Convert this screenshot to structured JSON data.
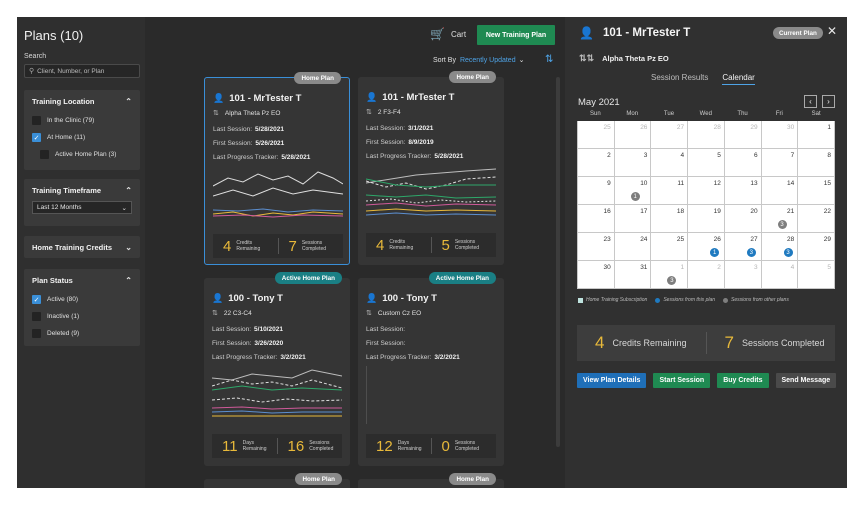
{
  "sidebar": {
    "title": "Plans (10)",
    "search_label": "Search",
    "search_placeholder": "Client, Number, or Plan",
    "location": {
      "title": "Training Location",
      "options": [
        {
          "label": "In the Clinic (79)",
          "checked": false
        },
        {
          "label": "At Home (11)",
          "checked": true
        },
        {
          "label": "Active Home Plan (3)",
          "checked": false
        }
      ]
    },
    "timeframe": {
      "title": "Training Timeframe",
      "value": "Last 12 Months"
    },
    "credits": {
      "title": "Home Training Credits"
    },
    "status": {
      "title": "Plan Status",
      "options": [
        {
          "label": "Active (80)",
          "checked": true
        },
        {
          "label": "Inactive (1)",
          "checked": false
        },
        {
          "label": "Deleted (9)",
          "checked": false
        }
      ]
    }
  },
  "toolbar": {
    "cart_label": "Cart",
    "new_plan_label": "New Training Plan",
    "sort_label": "Sort By",
    "sort_value": "Recently Updated"
  },
  "cards": [
    {
      "badge": "Home Plan",
      "badge_type": "home",
      "name": "101 - MrTester T",
      "protocol": "Alpha Theta Pz EO",
      "last_session_label": "Last Session:",
      "last_session": "5/28/2021",
      "first_session_label": "First Session:",
      "first_session": "5/26/2021",
      "tracker_label": "Last Progress Tracker:",
      "tracker": "5/28/2021",
      "stat1_num": "4",
      "stat1_l1": "Credits",
      "stat1_l2": "Remaining",
      "stat2_num": "7",
      "stat2_l1": "Sessions",
      "stat2_l2": "Completed"
    },
    {
      "badge": "Home Plan",
      "badge_type": "home",
      "name": "101 - MrTester T",
      "protocol": "2 F3-F4",
      "last_session_label": "Last Session:",
      "last_session": "3/1/2021",
      "first_session_label": "First Session:",
      "first_session": "8/9/2019",
      "tracker_label": "Last Progress Tracker:",
      "tracker": "5/28/2021",
      "stat1_num": "4",
      "stat1_l1": "Credits",
      "stat1_l2": "Remaining",
      "stat2_num": "5",
      "stat2_l1": "Sessions",
      "stat2_l2": "Completed"
    },
    {
      "badge": "Active Home Plan",
      "badge_type": "active",
      "name": "100 - Tony T",
      "protocol": "22 C3-C4",
      "last_session_label": "Last Session:",
      "last_session": "5/10/2021",
      "first_session_label": "First Session:",
      "first_session": "3/26/2020",
      "tracker_label": "Last Progress Tracker:",
      "tracker": "3/2/2021",
      "stat1_num": "11",
      "stat1_l1": "Days",
      "stat1_l2": "Remaining",
      "stat2_num": "16",
      "stat2_l1": "Sessions",
      "stat2_l2": "Completed"
    },
    {
      "badge": "Active Home Plan",
      "badge_type": "active",
      "name": "100 - Tony T",
      "protocol": "Custom Cz EO",
      "last_session_label": "Last Session:",
      "last_session": "",
      "first_session_label": "First Session:",
      "first_session": "",
      "tracker_label": "Last Progress Tracker:",
      "tracker": "3/2/2021",
      "stat1_num": "12",
      "stat1_l1": "Days",
      "stat1_l2": "Remaining",
      "stat2_num": "0",
      "stat2_l1": "Sessions",
      "stat2_l2": "Completed"
    }
  ],
  "peek_badges": [
    "Home Plan",
    "Home Plan"
  ],
  "detail": {
    "name": "101 - MrTester T",
    "current_badge": "Current Plan",
    "protocol": "Alpha Theta Pz EO",
    "tabs": [
      "Session Results",
      "Calendar"
    ],
    "active_tab": 1,
    "month": "May 2021",
    "weekdays": [
      "Sun",
      "Mon",
      "Tue",
      "Wed",
      "Thu",
      "Fri",
      "Sat"
    ],
    "days": [
      {
        "d": "25",
        "other": true
      },
      {
        "d": "26",
        "other": true
      },
      {
        "d": "27",
        "other": true
      },
      {
        "d": "28",
        "other": true
      },
      {
        "d": "29",
        "other": true
      },
      {
        "d": "30",
        "other": true
      },
      {
        "d": "1"
      },
      {
        "d": "2"
      },
      {
        "d": "3"
      },
      {
        "d": "4"
      },
      {
        "d": "5"
      },
      {
        "d": "6"
      },
      {
        "d": "7"
      },
      {
        "d": "8"
      },
      {
        "d": "9"
      },
      {
        "d": "10",
        "dot": "1",
        "dot_color": "gray"
      },
      {
        "d": "11"
      },
      {
        "d": "12"
      },
      {
        "d": "13"
      },
      {
        "d": "14"
      },
      {
        "d": "15"
      },
      {
        "d": "16"
      },
      {
        "d": "17"
      },
      {
        "d": "18"
      },
      {
        "d": "19"
      },
      {
        "d": "20"
      },
      {
        "d": "21",
        "dot": "3",
        "dot_color": "gray"
      },
      {
        "d": "22"
      },
      {
        "d": "23"
      },
      {
        "d": "24"
      },
      {
        "d": "25"
      },
      {
        "d": "26",
        "dot": "1",
        "dot_color": "blue"
      },
      {
        "d": "27",
        "dot": "3",
        "dot_color": "blue"
      },
      {
        "d": "28",
        "dot": "3",
        "dot_color": "blue"
      },
      {
        "d": "29"
      },
      {
        "d": "30"
      },
      {
        "d": "31"
      },
      {
        "d": "1",
        "other": true,
        "dot": "3",
        "dot_color": "gray"
      },
      {
        "d": "2",
        "other": true
      },
      {
        "d": "3",
        "other": true
      },
      {
        "d": "4",
        "other": true
      },
      {
        "d": "5",
        "other": true
      }
    ],
    "legend": [
      "Home Training Subscription",
      "Sessions from this plan",
      "Sessions from other plans"
    ],
    "credits_num": "4",
    "credits_label": "Credits Remaining",
    "sessions_num": "7",
    "sessions_label": "Sessions Completed",
    "buttons": [
      "View Plan Details",
      "Start Session",
      "Buy Credits",
      "Send Message"
    ]
  },
  "colors": {
    "accent_blue": "#1f6fb8",
    "accent_green": "#1f8a52",
    "teal_badge": "#1a7f84",
    "stat_yellow": "#e8b93a"
  }
}
